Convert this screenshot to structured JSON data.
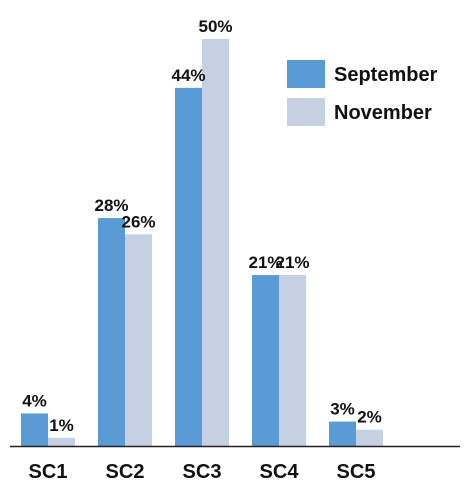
{
  "chart_data": {
    "type": "bar",
    "categories": [
      "SC1",
      "SC2",
      "SC3",
      "SC4",
      "SC5"
    ],
    "series": [
      {
        "name": "September",
        "values": [
          4,
          28,
          44,
          21,
          3
        ],
        "labels": [
          "4%",
          "28%",
          "44%",
          "21%",
          "3%"
        ],
        "color": "#5b9bd5"
      },
      {
        "name": "November",
        "values": [
          1,
          26,
          50,
          21,
          2
        ],
        "labels": [
          "1%",
          "26%",
          "50%",
          "21%",
          "2%"
        ],
        "color": "#c5d0e3"
      }
    ],
    "title": "",
    "xlabel": "",
    "ylabel": "",
    "ylim": [
      0,
      50
    ],
    "grid": false,
    "legend": "top-right"
  }
}
